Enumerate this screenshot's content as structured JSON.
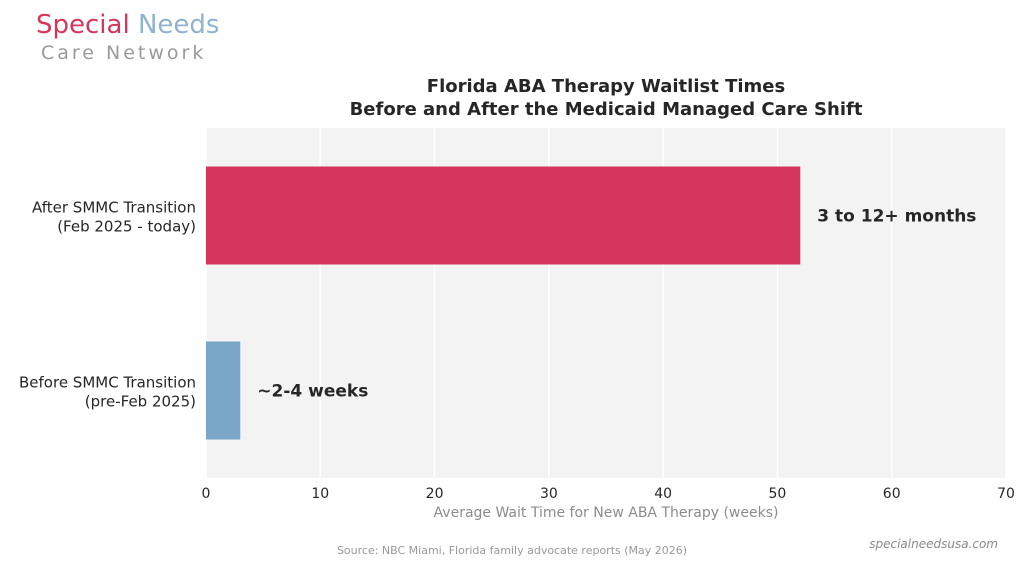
{
  "brand": {
    "word1": "Special",
    "word2": "Needs",
    "line2": "Care Network"
  },
  "footer": {
    "source": "Source: NBC Miami, Florida family advocate reports (May 2026)",
    "site": "specialneedsusa.com"
  },
  "colors": {
    "after": "#d6365c",
    "before": "#7aa6c8",
    "plot_bg": "#f3f3f3",
    "grid": "#ffffff"
  },
  "chart_data": {
    "type": "bar",
    "orientation": "horizontal",
    "title": "Florida ABA Therapy Waitlist Times",
    "subtitle": "Before and After the Medicaid Managed Care Shift",
    "xlabel": "Average Wait Time for New ABA Therapy (weeks)",
    "ylabel": "",
    "xlim": [
      0,
      70
    ],
    "xticks": [
      0,
      10,
      20,
      30,
      40,
      50,
      60,
      70
    ],
    "grid": true,
    "categories": [
      [
        "Before SMMC Transition",
        "(pre-Feb 2025)"
      ],
      [
        "After SMMC Transition",
        "(Feb 2025 - today)"
      ]
    ],
    "values": [
      3,
      52
    ],
    "data_labels": [
      "~2-4 weeks",
      "3 to 12+ months"
    ]
  }
}
